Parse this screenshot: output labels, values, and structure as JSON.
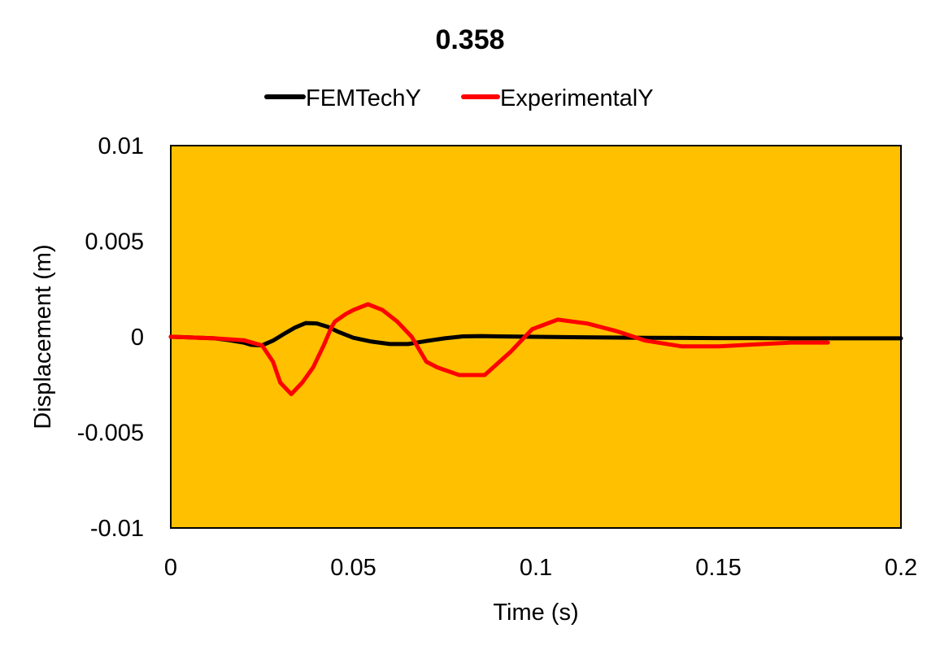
{
  "chart_data": {
    "type": "line",
    "title": "0.358",
    "xlabel": "Time (s)",
    "ylabel": "Displacement (m)",
    "xlim": [
      0,
      0.2
    ],
    "ylim": [
      -0.01,
      0.01
    ],
    "x_ticks": [
      0,
      0.05,
      0.1,
      0.15,
      0.2
    ],
    "x_tick_labels": [
      "0",
      "0.05",
      "0.1",
      "0.15",
      "0.2"
    ],
    "y_ticks": [
      0.01,
      0.005,
      0,
      -0.005,
      -0.01
    ],
    "y_tick_labels": [
      "0.01",
      "0.005",
      "0",
      "-0.005",
      "-0.01"
    ],
    "grid": false,
    "legend_position": "top",
    "plot_background": "#FFC000",
    "series": [
      {
        "name": "FEMTechY",
        "color": "#000000",
        "x": [
          0,
          0.004,
          0.008,
          0.012,
          0.016,
          0.02,
          0.022,
          0.025,
          0.028,
          0.031,
          0.034,
          0.037,
          0.04,
          0.043,
          0.046,
          0.05,
          0.055,
          0.06,
          0.065,
          0.07,
          0.075,
          0.08,
          0.085,
          0.09,
          0.1,
          0.11,
          0.12,
          0.13,
          0.14,
          0.15,
          0.16,
          0.17,
          0.18,
          0.19,
          0.2
        ],
        "y": [
          0,
          -2e-05,
          -5e-05,
          -8e-05,
          -0.00018,
          -0.0003,
          -0.00042,
          -0.00045,
          -0.0002,
          0.00015,
          0.00048,
          0.00072,
          0.0007,
          0.00052,
          0.00025,
          -5e-05,
          -0.00025,
          -0.00038,
          -0.00038,
          -0.00022,
          -8e-05,
          2e-05,
          4e-05,
          2e-05,
          0,
          -2e-05,
          -4e-05,
          -5e-05,
          -6e-05,
          -7e-05,
          -7e-05,
          -8e-05,
          -8e-05,
          -8e-05,
          -8e-05
        ]
      },
      {
        "name": "ExperimentalY",
        "color": "#FF0000",
        "x": [
          0,
          0.005,
          0.012,
          0.02,
          0.025,
          0.028,
          0.03,
          0.033,
          0.036,
          0.039,
          0.042,
          0.044,
          0.045,
          0.048,
          0.05,
          0.054,
          0.058,
          0.062,
          0.066,
          0.07,
          0.073,
          0.079,
          0.086,
          0.093,
          0.099,
          0.106,
          0.114,
          0.122,
          0.13,
          0.14,
          0.15,
          0.16,
          0.17,
          0.18
        ],
        "y": [
          0,
          -3e-05,
          -8e-05,
          -0.00018,
          -0.00045,
          -0.0013,
          -0.0024,
          -0.003,
          -0.0024,
          -0.0016,
          -0.0004,
          0.0005,
          0.0008,
          0.0012,
          0.0014,
          0.0017,
          0.0014,
          0.0008,
          0,
          -0.0013,
          -0.0016,
          -0.002,
          -0.002,
          -0.0008,
          0.0004,
          0.0009,
          0.0007,
          0.0003,
          -0.0002,
          -0.0005,
          -0.0005,
          -0.0004,
          -0.0003,
          -0.0003
        ]
      }
    ]
  }
}
